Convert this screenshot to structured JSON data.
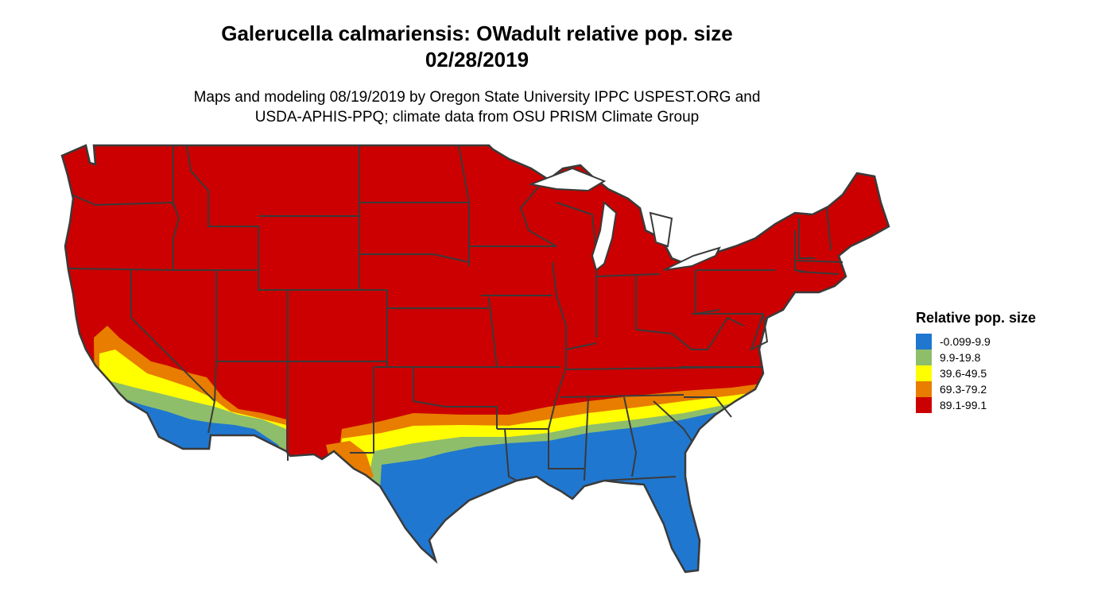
{
  "title_line1": "Galerucella calmariensis: OWadult relative pop. size",
  "title_line2": "02/28/2019",
  "subtitle_line1": "Maps and modeling 08/19/2019 by Oregon State University IPPC USPEST.ORG and",
  "subtitle_line2": "USDA-APHIS-PPQ; climate data from OSU PRISM Climate Group",
  "legend": {
    "title": "Relative pop. size",
    "items": [
      {
        "label": "-0.099-9.9",
        "color": "#1f77d0"
      },
      {
        "label": "9.9-19.8",
        "color": "#8fbe6a"
      },
      {
        "label": "39.6-49.5",
        "color": "#ffff00"
      },
      {
        "label": "69.3-79.2",
        "color": "#e87d00"
      },
      {
        "label": "89.1-99.1",
        "color": "#cc0000"
      }
    ]
  },
  "colors": {
    "border": "#3a3a3a",
    "background": "#ffffff"
  }
}
